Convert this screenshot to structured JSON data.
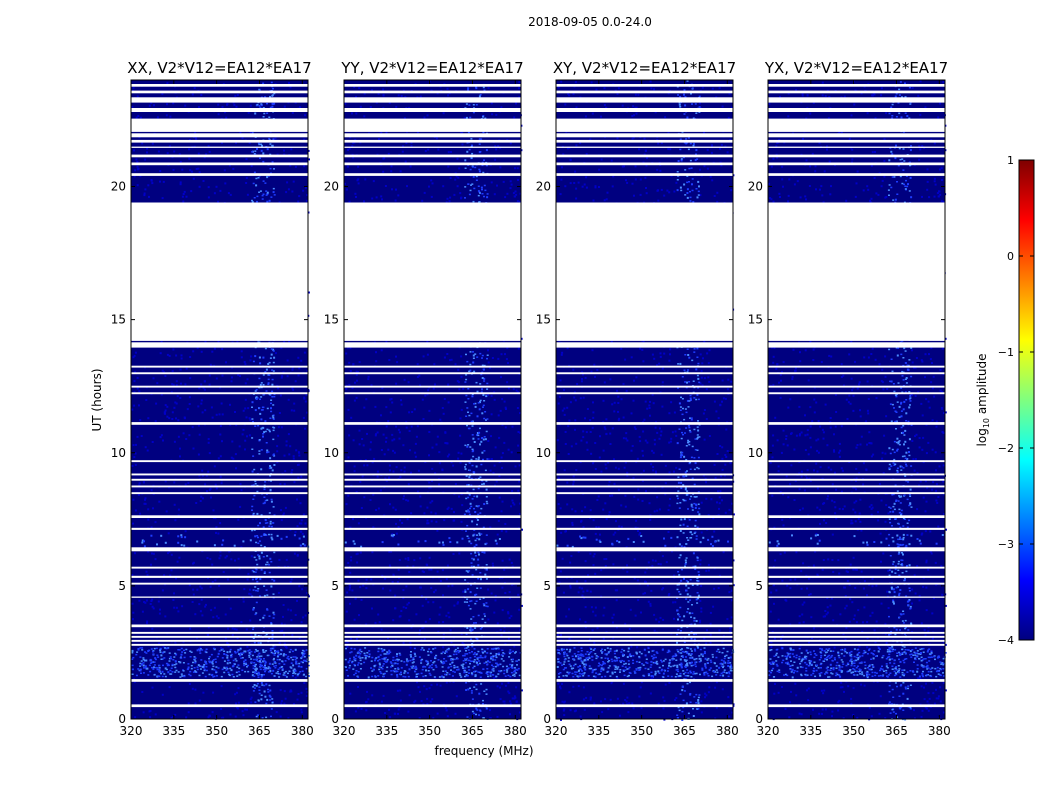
{
  "figure_title": "2018-09-05 0.0-24.0",
  "colors": {
    "background_band": "#000080",
    "noise_mid": "#0000c8",
    "noise_bright": "#1e3cff",
    "noise_hot": "#4a8cff",
    "gap": "#ffffff",
    "axis": "#000000"
  },
  "chart_data": {
    "type": "heatmap",
    "title": "2018-09-05 0.0-24.0",
    "xlabel": "frequency (MHz)",
    "ylabel": "UT (hours)",
    "xlim": [
      320,
      382
    ],
    "ylim": [
      0,
      24
    ],
    "xticks": [
      320,
      335,
      350,
      365,
      380
    ],
    "yticks": [
      0,
      5,
      10,
      15,
      20
    ],
    "panels": [
      {
        "title": "XX, V2*V12=EA12*EA17"
      },
      {
        "title": "YY, V2*V12=EA12*EA17"
      },
      {
        "title": "XY, V2*V12=EA12*EA17"
      },
      {
        "title": "YX, V2*V12=EA12*EA17"
      }
    ],
    "gaps_hours": [
      [
        0.45,
        0.55
      ],
      [
        1.4,
        1.5
      ],
      [
        2.75,
        2.82
      ],
      [
        2.9,
        2.97
      ],
      [
        3.05,
        3.12
      ],
      [
        3.2,
        3.27
      ],
      [
        3.45,
        3.55
      ],
      [
        4.55,
        4.6
      ],
      [
        5.05,
        5.12
      ],
      [
        5.3,
        5.38
      ],
      [
        5.65,
        5.72
      ],
      [
        6.3,
        6.45
      ],
      [
        7.1,
        7.18
      ],
      [
        7.55,
        7.65
      ],
      [
        8.45,
        8.52
      ],
      [
        8.7,
        8.77
      ],
      [
        8.95,
        9.02
      ],
      [
        9.15,
        9.22
      ],
      [
        9.65,
        9.72
      ],
      [
        11.05,
        11.15
      ],
      [
        12.2,
        12.27
      ],
      [
        12.45,
        12.52
      ],
      [
        12.95,
        13.02
      ],
      [
        13.2,
        13.27
      ],
      [
        13.95,
        14.15
      ],
      [
        14.2,
        19.4
      ],
      [
        20.4,
        20.5
      ],
      [
        20.8,
        20.9
      ],
      [
        21.1,
        21.2
      ],
      [
        21.45,
        21.5
      ],
      [
        21.65,
        21.75
      ],
      [
        21.85,
        22.0
      ],
      [
        22.05,
        22.55
      ],
      [
        22.8,
        22.95
      ],
      [
        23.15,
        23.35
      ],
      [
        23.5,
        23.6
      ],
      [
        23.75,
        23.85
      ]
    ],
    "bright_bands_hours": [
      [
        1.6,
        2.7
      ],
      [
        6.5,
        6.95
      ]
    ],
    "rfi_channels_mhz": [
      [
        362,
        370
      ]
    ],
    "colorbar": {
      "label": "log10 amplitude",
      "label_base": "log",
      "label_sub": "10",
      "label_rest": " amplitude",
      "range": [
        -4,
        1
      ],
      "ticks": [
        1,
        0,
        -1,
        -2,
        -3,
        -4
      ],
      "colormap": "jet"
    }
  }
}
